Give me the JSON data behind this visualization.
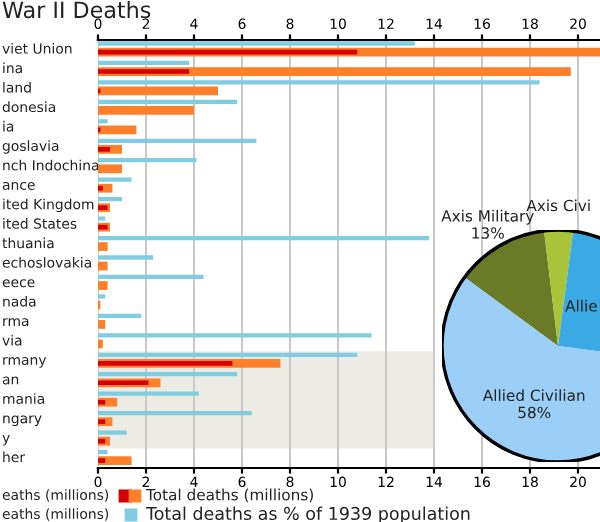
{
  "chart_data": [
    {
      "type": "bar",
      "orientation": "horizontal",
      "title": "War II Deaths",
      "categories": [
        "viet Union",
        "ina",
        "land",
        "donesia",
        "ia",
        "goslavia",
        "nch Indochina",
        "ance",
        "ited Kingdom",
        "ited States",
        "thuania",
        "echoslovakia",
        "eece",
        "nada",
        "rma",
        "via",
        "rmany",
        "an",
        "mania",
        "ngary",
        "y",
        "her"
      ],
      "series": [
        {
          "name": "Total deaths as % of 1939 population",
          "color": "#80cde2",
          "axis": "x2",
          "values": [
            13.2,
            3.8,
            18.4,
            5.8,
            0.4,
            6.6,
            4.1,
            1.4,
            1.0,
            0.3,
            13.8,
            2.3,
            4.4,
            0.3,
            1.8,
            11.4,
            10.8,
            5.8,
            4.2,
            6.4,
            1.2,
            0.4
          ]
        },
        {
          "name": "Total deaths (millions)",
          "color": "#ff7f2a",
          "values": [
            21,
            19.7,
            5.0,
            4.0,
            1.6,
            1.0,
            1.0,
            0.6,
            0.5,
            0.5,
            0.4,
            0.4,
            0.4,
            0.1,
            0.3,
            0.2,
            7.6,
            2.6,
            0.8,
            0.6,
            0.5,
            1.4
          ]
        },
        {
          "color": "#d40000",
          "values": [
            10.8,
            3.8,
            0.1,
            null,
            0.1,
            0.5,
            null,
            0.2,
            0.4,
            0.4,
            null,
            null,
            null,
            null,
            null,
            null,
            5.6,
            2.1,
            0.3,
            0.3,
            0.3,
            0.3
          ]
        }
      ],
      "xlim": [
        0,
        21
      ],
      "xticks": [
        0,
        2,
        4,
        6,
        8,
        10,
        12,
        14,
        16,
        18,
        20
      ],
      "x2lim": [
        0,
        21
      ],
      "x2ticks": [
        0,
        2,
        4,
        6,
        8,
        10,
        12,
        14,
        16,
        18,
        20
      ],
      "grid": "x",
      "legend": "bottom",
      "annotations": [
        "eaths (millions)",
        "eaths (millions)"
      ]
    },
    {
      "type": "pie",
      "categories": [
        "Axis Military",
        "Axis Civi",
        "Allie",
        "Allied Civilian"
      ],
      "values": [
        13,
        4,
        25,
        58
      ],
      "colors": [
        "#6b7a26",
        "#a9c43b",
        "#3ba9e3",
        "#9bcff7"
      ],
      "value_labels": [
        "13%",
        null,
        null,
        "58%"
      ]
    }
  ]
}
